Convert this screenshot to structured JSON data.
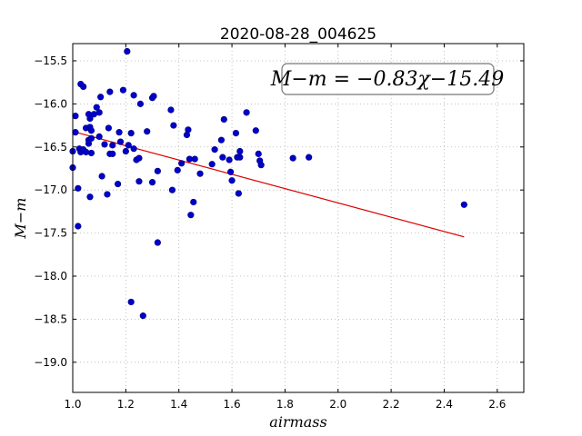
{
  "chart_data": {
    "type": "scatter",
    "title": "2020-08-28_004625",
    "xlabel": "airmass",
    "ylabel": "M−m",
    "xlim": [
      1.0,
      2.7
    ],
    "ylim": [
      -19.35,
      -15.3
    ],
    "y_inverted": true,
    "grid": true,
    "xticks": [
      1.0,
      1.2,
      1.4,
      1.6,
      1.8,
      2.0,
      2.2,
      2.4,
      2.6
    ],
    "xtick_labels": [
      "1.0",
      "1.2",
      "1.4",
      "1.6",
      "1.8",
      "2.0",
      "2.2",
      "2.4",
      "2.6"
    ],
    "yticks": [
      -15.5,
      -16.0,
      -16.5,
      -17.0,
      -17.5,
      -18.0,
      -18.5,
      -19.0
    ],
    "ytick_labels": [
      "−15.5",
      "−16.0",
      "−16.5",
      "−17.0",
      "−17.5",
      "−18.0",
      "−18.5",
      "−19.0"
    ],
    "annotation": "M−m = −0.83χ−15.49",
    "fit_line": {
      "slope": -0.83,
      "intercept": -15.49,
      "x_range": [
        1.0,
        2.475
      ],
      "color": "#dd0000"
    },
    "point_color": "#0000cc",
    "points": [
      [
        1.0,
        -16.55
      ],
      [
        1.0,
        -16.74
      ],
      [
        1.01,
        -16.33
      ],
      [
        1.01,
        -16.14
      ],
      [
        1.02,
        -16.98
      ],
      [
        1.02,
        -17.42
      ],
      [
        1.025,
        -16.52
      ],
      [
        1.03,
        -16.56
      ],
      [
        1.03,
        -15.77
      ],
      [
        1.04,
        -15.8
      ],
      [
        1.04,
        -16.53
      ],
      [
        1.05,
        -16.28
      ],
      [
        1.05,
        -16.56
      ],
      [
        1.06,
        -16.46
      ],
      [
        1.06,
        -16.42
      ],
      [
        1.06,
        -16.12
      ],
      [
        1.065,
        -16.17
      ],
      [
        1.065,
        -16.27
      ],
      [
        1.07,
        -16.31
      ],
      [
        1.07,
        -16.4
      ],
      [
        1.07,
        -16.57
      ],
      [
        1.065,
        -17.08
      ],
      [
        1.08,
        -16.12
      ],
      [
        1.09,
        -16.04
      ],
      [
        1.1,
        -16.1
      ],
      [
        1.1,
        -16.38
      ],
      [
        1.105,
        -15.92
      ],
      [
        1.11,
        -16.84
      ],
      [
        1.12,
        -16.47
      ],
      [
        1.13,
        -17.05
      ],
      [
        1.135,
        -16.28
      ],
      [
        1.14,
        -16.58
      ],
      [
        1.14,
        -15.86
      ],
      [
        1.15,
        -16.48
      ],
      [
        1.15,
        -16.58
      ],
      [
        1.17,
        -16.93
      ],
      [
        1.175,
        -16.33
      ],
      [
        1.18,
        -16.44
      ],
      [
        1.19,
        -15.84
      ],
      [
        1.2,
        -16.55
      ],
      [
        1.205,
        -15.39
      ],
      [
        1.21,
        -16.48
      ],
      [
        1.22,
        -16.34
      ],
      [
        1.22,
        -18.3
      ],
      [
        1.23,
        -15.9
      ],
      [
        1.23,
        -16.52
      ],
      [
        1.24,
        -16.65
      ],
      [
        1.25,
        -16.9
      ],
      [
        1.25,
        -16.63
      ],
      [
        1.255,
        -16.0
      ],
      [
        1.265,
        -18.46
      ],
      [
        1.28,
        -16.32
      ],
      [
        1.3,
        -16.91
      ],
      [
        1.3,
        -15.93
      ],
      [
        1.305,
        -15.91
      ],
      [
        1.32,
        -17.61
      ],
      [
        1.32,
        -16.78
      ],
      [
        1.37,
        -16.07
      ],
      [
        1.375,
        -17.0
      ],
      [
        1.38,
        -16.25
      ],
      [
        1.395,
        -16.77
      ],
      [
        1.41,
        -16.69
      ],
      [
        1.43,
        -16.36
      ],
      [
        1.435,
        -16.3
      ],
      [
        1.44,
        -16.64
      ],
      [
        1.445,
        -17.29
      ],
      [
        1.455,
        -17.14
      ],
      [
        1.46,
        -16.64
      ],
      [
        1.48,
        -16.81
      ],
      [
        1.525,
        -16.7
      ],
      [
        1.535,
        -16.53
      ],
      [
        1.56,
        -16.42
      ],
      [
        1.565,
        -16.62
      ],
      [
        1.57,
        -16.18
      ],
      [
        1.59,
        -16.65
      ],
      [
        1.595,
        -16.79
      ],
      [
        1.6,
        -16.89
      ],
      [
        1.615,
        -16.34
      ],
      [
        1.62,
        -16.62
      ],
      [
        1.625,
        -17.04
      ],
      [
        1.63,
        -16.55
      ],
      [
        1.63,
        -16.62
      ],
      [
        1.655,
        -16.1
      ],
      [
        1.69,
        -16.31
      ],
      [
        1.7,
        -16.58
      ],
      [
        1.705,
        -16.66
      ],
      [
        1.71,
        -16.71
      ],
      [
        1.83,
        -16.63
      ],
      [
        1.89,
        -16.62
      ],
      [
        2.475,
        -17.17
      ]
    ]
  }
}
